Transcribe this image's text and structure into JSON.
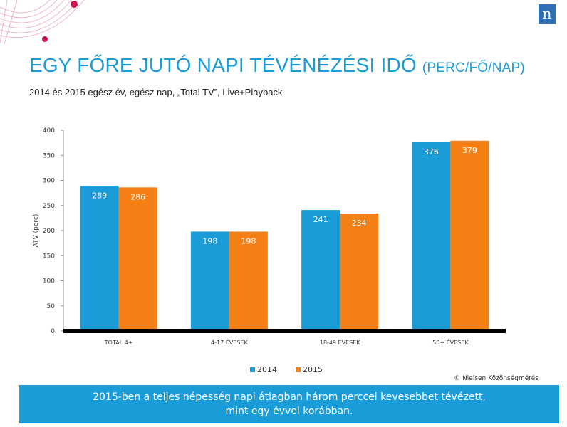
{
  "logo": "n",
  "title": {
    "main": "EGY FŐRE JUTÓ NAPI TÉVÉNÉZÉSI IDŐ",
    "unit": "(PERC/FŐ/NAP)"
  },
  "subtitle": "2014 és 2015 egész év, egész nap, „Total TV”, Live+Playback",
  "chart_data": {
    "type": "bar",
    "categories": [
      "TOTAL 4+",
      "4-17 ÉVESEK",
      "18-49 ÉVESEK",
      "50+ ÉVESEK"
    ],
    "series": [
      {
        "name": "2014",
        "values": [
          289,
          198,
          241,
          376
        ],
        "color": "#1a9cd8"
      },
      {
        "name": "2015",
        "values": [
          286,
          198,
          234,
          379
        ],
        "color": "#f47f14"
      }
    ],
    "ylabel": "ATV (perc)",
    "ylim": [
      0,
      400
    ],
    "yticks": [
      0,
      50,
      100,
      150,
      200,
      250,
      300,
      350,
      400
    ],
    "legend_position": "bottom",
    "grid": false
  },
  "source": "© Nielsen Közönségmérés",
  "footer": {
    "line1": "2015-ben a teljes népesség napi átlagban három perccel kevesebbet tévézett,",
    "line2": "mint egy évvel korábban."
  },
  "colors": {
    "accent": "#1a9cd8",
    "series_2014": "#1a9cd8",
    "series_2015": "#f47f14",
    "decoration": "#c8174f"
  }
}
